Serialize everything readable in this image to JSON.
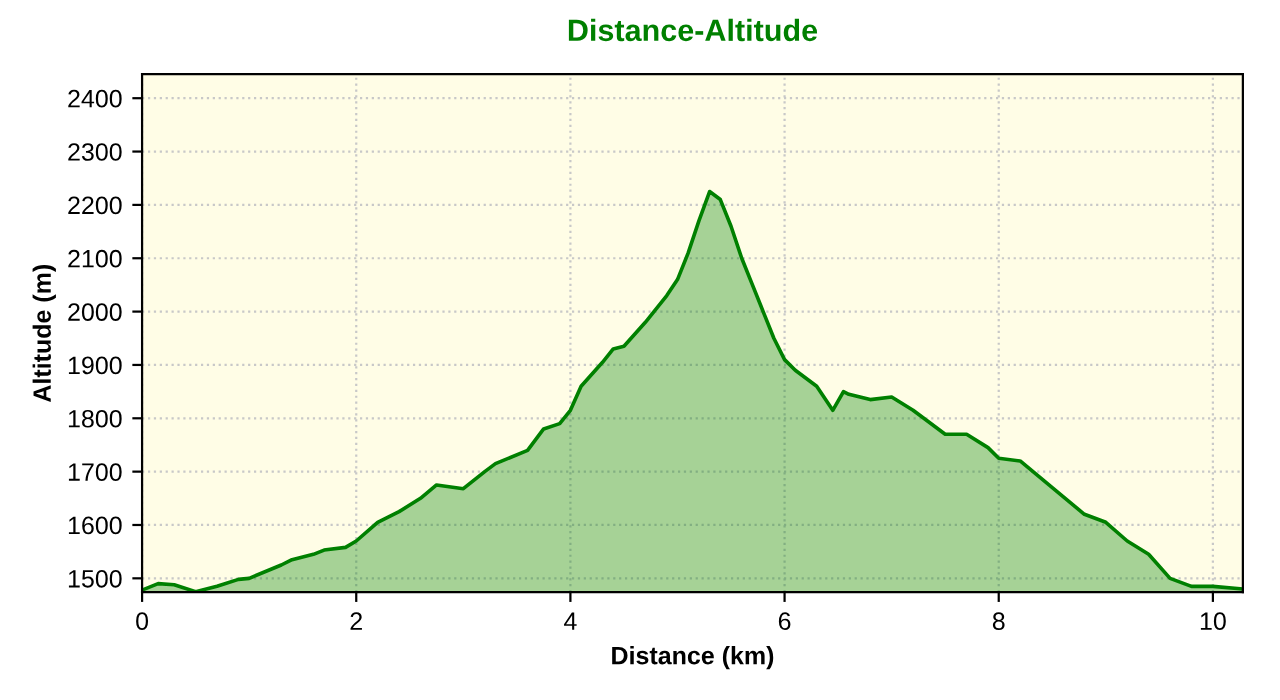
{
  "chart_data": {
    "type": "area",
    "title": "Distance-Altitude",
    "xlabel": "Distance (km)",
    "ylabel": "Altitude (m)",
    "x": [
      0,
      0.15,
      0.3,
      0.5,
      0.7,
      0.9,
      1.0,
      1.3,
      1.4,
      1.6,
      1.7,
      1.9,
      2.0,
      2.2,
      2.4,
      2.6,
      2.75,
      3.0,
      3.2,
      3.3,
      3.6,
      3.75,
      3.9,
      4.0,
      4.1,
      4.3,
      4.4,
      4.5,
      4.7,
      4.9,
      5.0,
      5.1,
      5.2,
      5.3,
      5.4,
      5.5,
      5.6,
      5.7,
      5.8,
      5.9,
      6.0,
      6.1,
      6.3,
      6.45,
      6.55,
      6.6,
      6.8,
      7.0,
      7.2,
      7.5,
      7.7,
      7.9,
      8.0,
      8.2,
      8.5,
      8.8,
      9.0,
      9.2,
      9.4,
      9.6,
      9.8,
      10.0,
      10.28
    ],
    "series": [
      {
        "color": "#008000",
        "values": [
          1478,
          1490,
          1488,
          1475,
          1485,
          1498,
          1500,
          1525,
          1535,
          1545,
          1553,
          1558,
          1570,
          1605,
          1625,
          1650,
          1675,
          1668,
          1700,
          1715,
          1740,
          1780,
          1790,
          1815,
          1860,
          1905,
          1930,
          1935,
          1980,
          2030,
          2060,
          2110,
          2170,
          2225,
          2210,
          2160,
          2100,
          2050,
          2000,
          1950,
          1910,
          1890,
          1860,
          1815,
          1850,
          1845,
          1835,
          1840,
          1815,
          1770,
          1770,
          1745,
          1725,
          1720,
          1670,
          1620,
          1605,
          1570,
          1545,
          1500,
          1485,
          1485,
          1480
        ]
      }
    ],
    "xlim": [
      0,
      10.28
    ],
    "ylim": [
      1474,
      2445
    ],
    "xticks": [
      0,
      2,
      4,
      6,
      8,
      10
    ],
    "yticks": [
      1500,
      1600,
      1700,
      1800,
      1900,
      2000,
      2100,
      2200,
      2300,
      2400
    ],
    "grid": true,
    "legend": false
  }
}
